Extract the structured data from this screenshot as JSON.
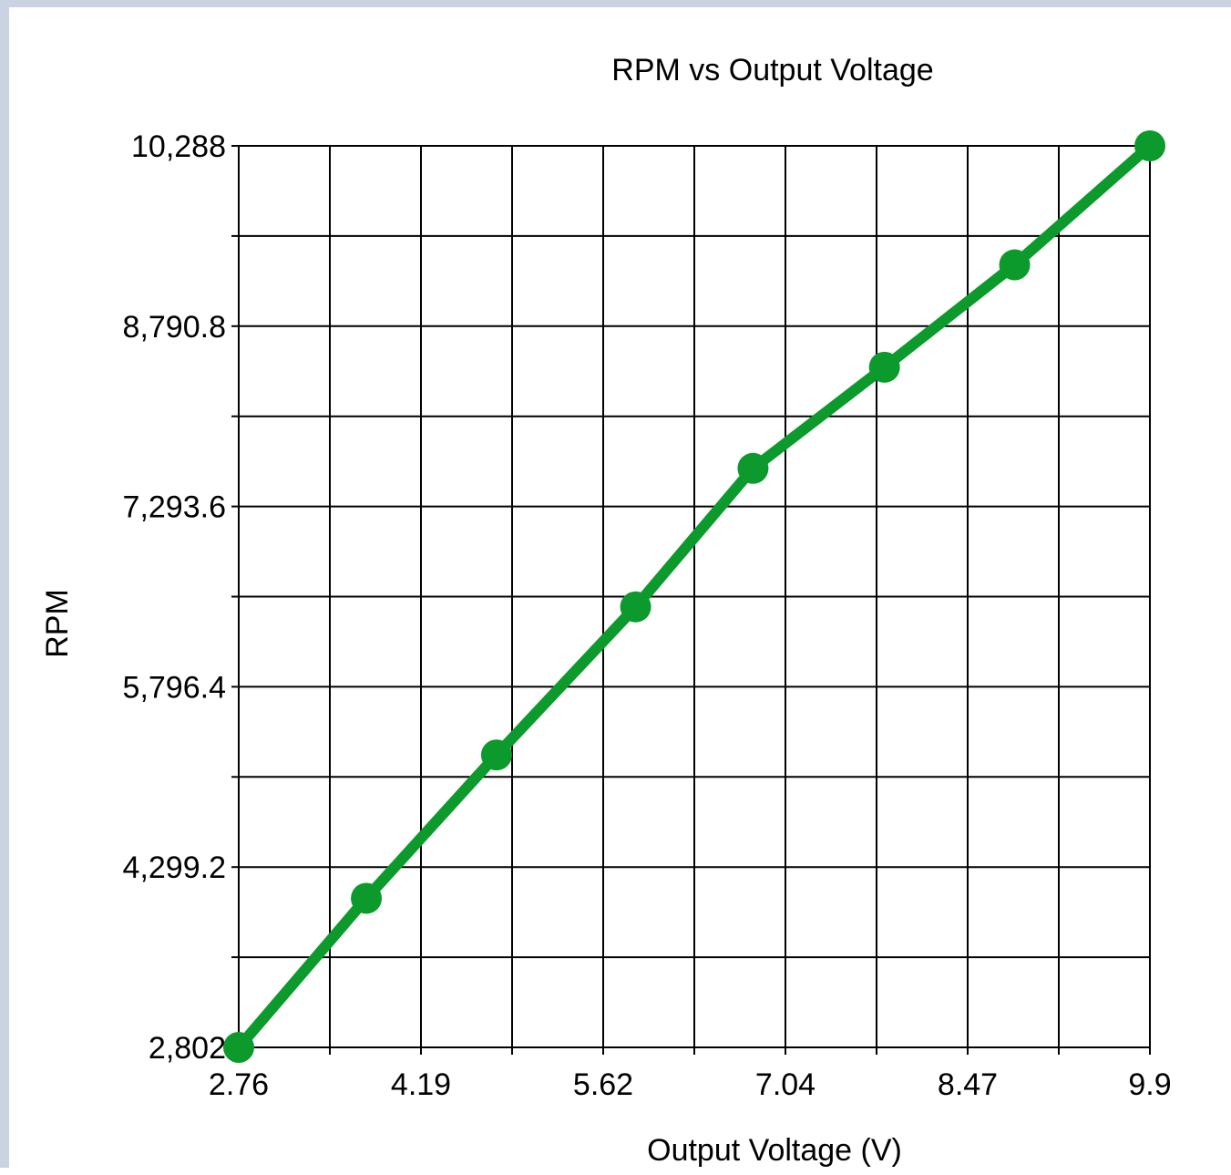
{
  "colors": {
    "series": "#0d9a2c",
    "grid": "#000000",
    "frame": "#c9d3e3",
    "background": "#ffffff"
  },
  "chart_data": {
    "type": "line",
    "title": "RPM vs Output Voltage",
    "xlabel": "Output Voltage (V)",
    "ylabel": "RPM",
    "xlim": [
      2.76,
      9.9
    ],
    "ylim": [
      2802,
      10288
    ],
    "x_ticks": [
      "2.76",
      "4.19",
      "5.62",
      "7.04",
      "8.47",
      "9.9"
    ],
    "y_ticks": [
      "2,802",
      "4,299.2",
      "5,796.4",
      "7,293.6",
      "8,790.8",
      "10,288"
    ],
    "grid": true,
    "legend": "none",
    "series": [
      {
        "x": [
          2.76,
          3.76,
          4.78,
          5.87,
          6.79,
          7.82,
          8.84,
          9.9
        ],
        "y": [
          2802,
          4040,
          5230,
          6460,
          7610,
          8450,
          9300,
          10288
        ]
      }
    ]
  }
}
